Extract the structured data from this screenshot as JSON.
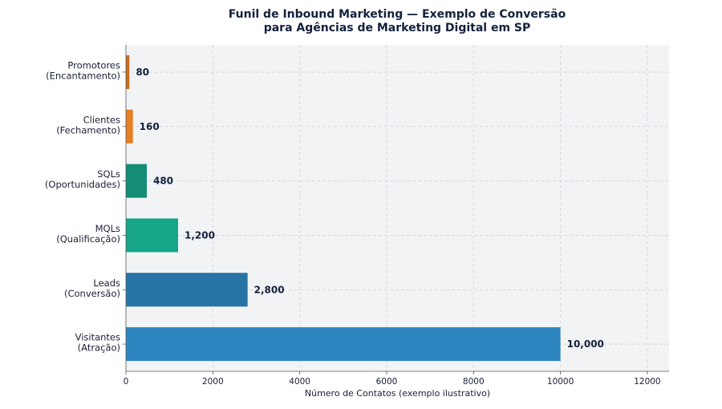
{
  "chart_data": {
    "type": "bar",
    "orientation": "horizontal",
    "title_line1": "Funil de Inbound Marketing — Exemplo de Conversão",
    "title_line2": "para Agências de Marketing Digital em SP",
    "xlabel": "Número de Contatos (exemplo ilustrativo)",
    "ylabel": "",
    "xlim": [
      0,
      12500
    ],
    "xticks": [
      0,
      2000,
      4000,
      6000,
      8000,
      10000,
      12000
    ],
    "grid": true,
    "categories": [
      [
        "Visitantes",
        "(Atração)"
      ],
      [
        "Leads",
        "(Conversão)"
      ],
      [
        "MQLs",
        "(Qualificação)"
      ],
      [
        "SQLs",
        "(Oportunidades)"
      ],
      [
        "Clientes",
        "(Fechamento)"
      ],
      [
        "Promotores",
        "(Encantamento)"
      ]
    ],
    "values": [
      10000,
      2800,
      1200,
      480,
      160,
      80
    ],
    "value_labels": [
      "10,000",
      "2,800",
      "1,200",
      "480",
      "160",
      "80"
    ],
    "colors": [
      "#2e86c1",
      "#2874a6",
      "#17a589",
      "#138d75",
      "#e67e22",
      "#ca6f1e"
    ]
  }
}
